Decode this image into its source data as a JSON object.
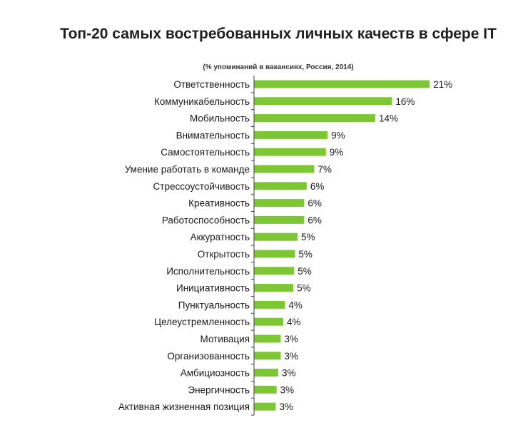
{
  "header": {
    "title": "Топ-20 самых востребованных личных качеств в сфере IT",
    "subtitle": "(% упоминаний в вакансиях, Россия, 2014)"
  },
  "colors": {
    "bar": "#7dc734",
    "axis": "#404040"
  },
  "chart_data": {
    "type": "bar",
    "orientation": "horizontal",
    "title": "Топ-20 самых востребованных личных качеств в сфере IT",
    "subtitle": "(% упоминаний в вакансиях, Россия, 2014)",
    "categories": [
      "Ответственность",
      "Коммуникабельность",
      "Мобильность",
      "Внимательность",
      "Самостоятельность",
      "Умение работать в команде",
      "Стрессоустойчивость",
      "Креативность",
      "Работоспособность",
      "Аккуратность",
      "Открытость",
      "Исполнительность",
      "Инициативность",
      "Пунктуальность",
      "Целеустремленность",
      "Мотивация",
      "Организованность",
      "Амбициозность",
      "Энергичность",
      "Активная жизненная позиция"
    ],
    "values": [
      21,
      16,
      14,
      9,
      9,
      7,
      6,
      6,
      6,
      5,
      5,
      5,
      5,
      4,
      4,
      3,
      3,
      3,
      3,
      3
    ],
    "bar_values": [
      21,
      16.5,
      14.5,
      8.8,
      8.6,
      7.2,
      6.3,
      6.0,
      6.0,
      5.2,
      4.9,
      4.8,
      4.7,
      3.7,
      3.5,
      3.2,
      3.2,
      2.9,
      2.7,
      2.6
    ],
    "data_labels": [
      "21%",
      "16%",
      "14%",
      "9%",
      "9%",
      "7%",
      "6%",
      "6%",
      "6%",
      "5%",
      "5%",
      "5%",
      "5%",
      "4%",
      "4%",
      "3%",
      "3%",
      "3%",
      "3%",
      "3%"
    ],
    "xlim": [
      0,
      21.5
    ],
    "grid": false,
    "legend": "none"
  }
}
